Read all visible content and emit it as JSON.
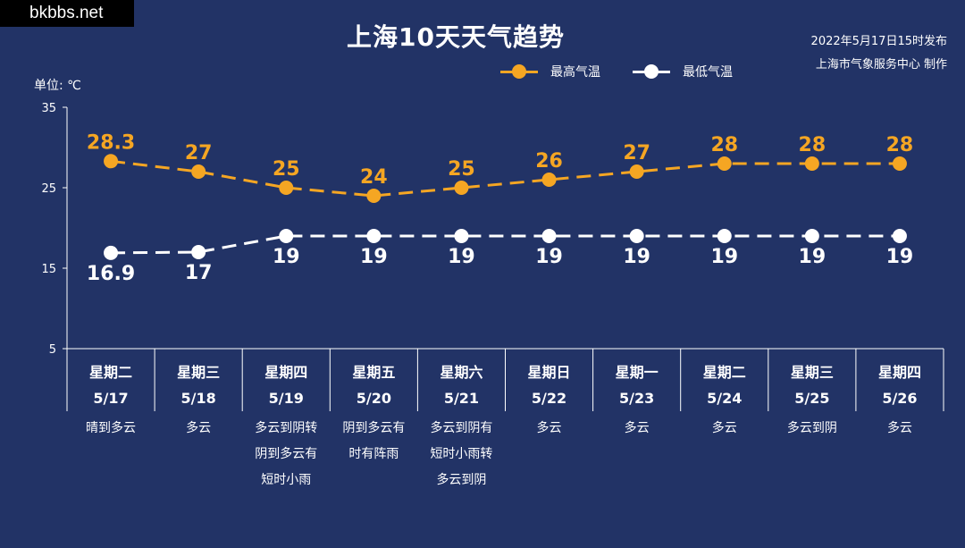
{
  "watermark": "bkbbs.net",
  "issued": "2022年5月17日15时发布",
  "producer": "上海市气象服务中心 制作",
  "colors": {
    "background": "#223366",
    "high": "#f5a623",
    "low": "#ffffff"
  },
  "chart_data": {
    "type": "line",
    "title": "上海10天天气趋势",
    "unit_label": "单位: ℃",
    "ylim": [
      5,
      35
    ],
    "yticks": [
      5,
      15,
      25,
      35
    ],
    "legend_position": "top-right",
    "days": [
      "星期二",
      "星期三",
      "星期四",
      "星期五",
      "星期六",
      "星期日",
      "星期一",
      "星期二",
      "星期三",
      "星期四"
    ],
    "dates": [
      "5/17",
      "5/18",
      "5/19",
      "5/20",
      "5/21",
      "5/22",
      "5/23",
      "5/24",
      "5/25",
      "5/26"
    ],
    "weather": [
      [
        "晴到多云"
      ],
      [
        "多云"
      ],
      [
        "多云到阴转",
        "阴到多云有",
        "短时小雨"
      ],
      [
        "阴到多云有",
        "时有阵雨"
      ],
      [
        "多云到阴有",
        "短时小雨转",
        "多云到阴"
      ],
      [
        "多云"
      ],
      [
        "多云"
      ],
      [
        "多云"
      ],
      [
        "多云到阴"
      ],
      [
        "多云"
      ]
    ],
    "series": [
      {
        "name": "最高气温",
        "values": [
          28.3,
          27,
          25,
          24,
          25,
          26,
          27,
          28,
          28,
          28
        ],
        "labels": [
          "28.3",
          "27",
          "25",
          "24",
          "25",
          "26",
          "27",
          "28",
          "28",
          "28"
        ]
      },
      {
        "name": "最低气温",
        "values": [
          16.9,
          17,
          19,
          19,
          19,
          19,
          19,
          19,
          19,
          19
        ],
        "labels": [
          "16.9",
          "17",
          "19",
          "19",
          "19",
          "19",
          "19",
          "19",
          "19",
          "19"
        ]
      }
    ]
  }
}
